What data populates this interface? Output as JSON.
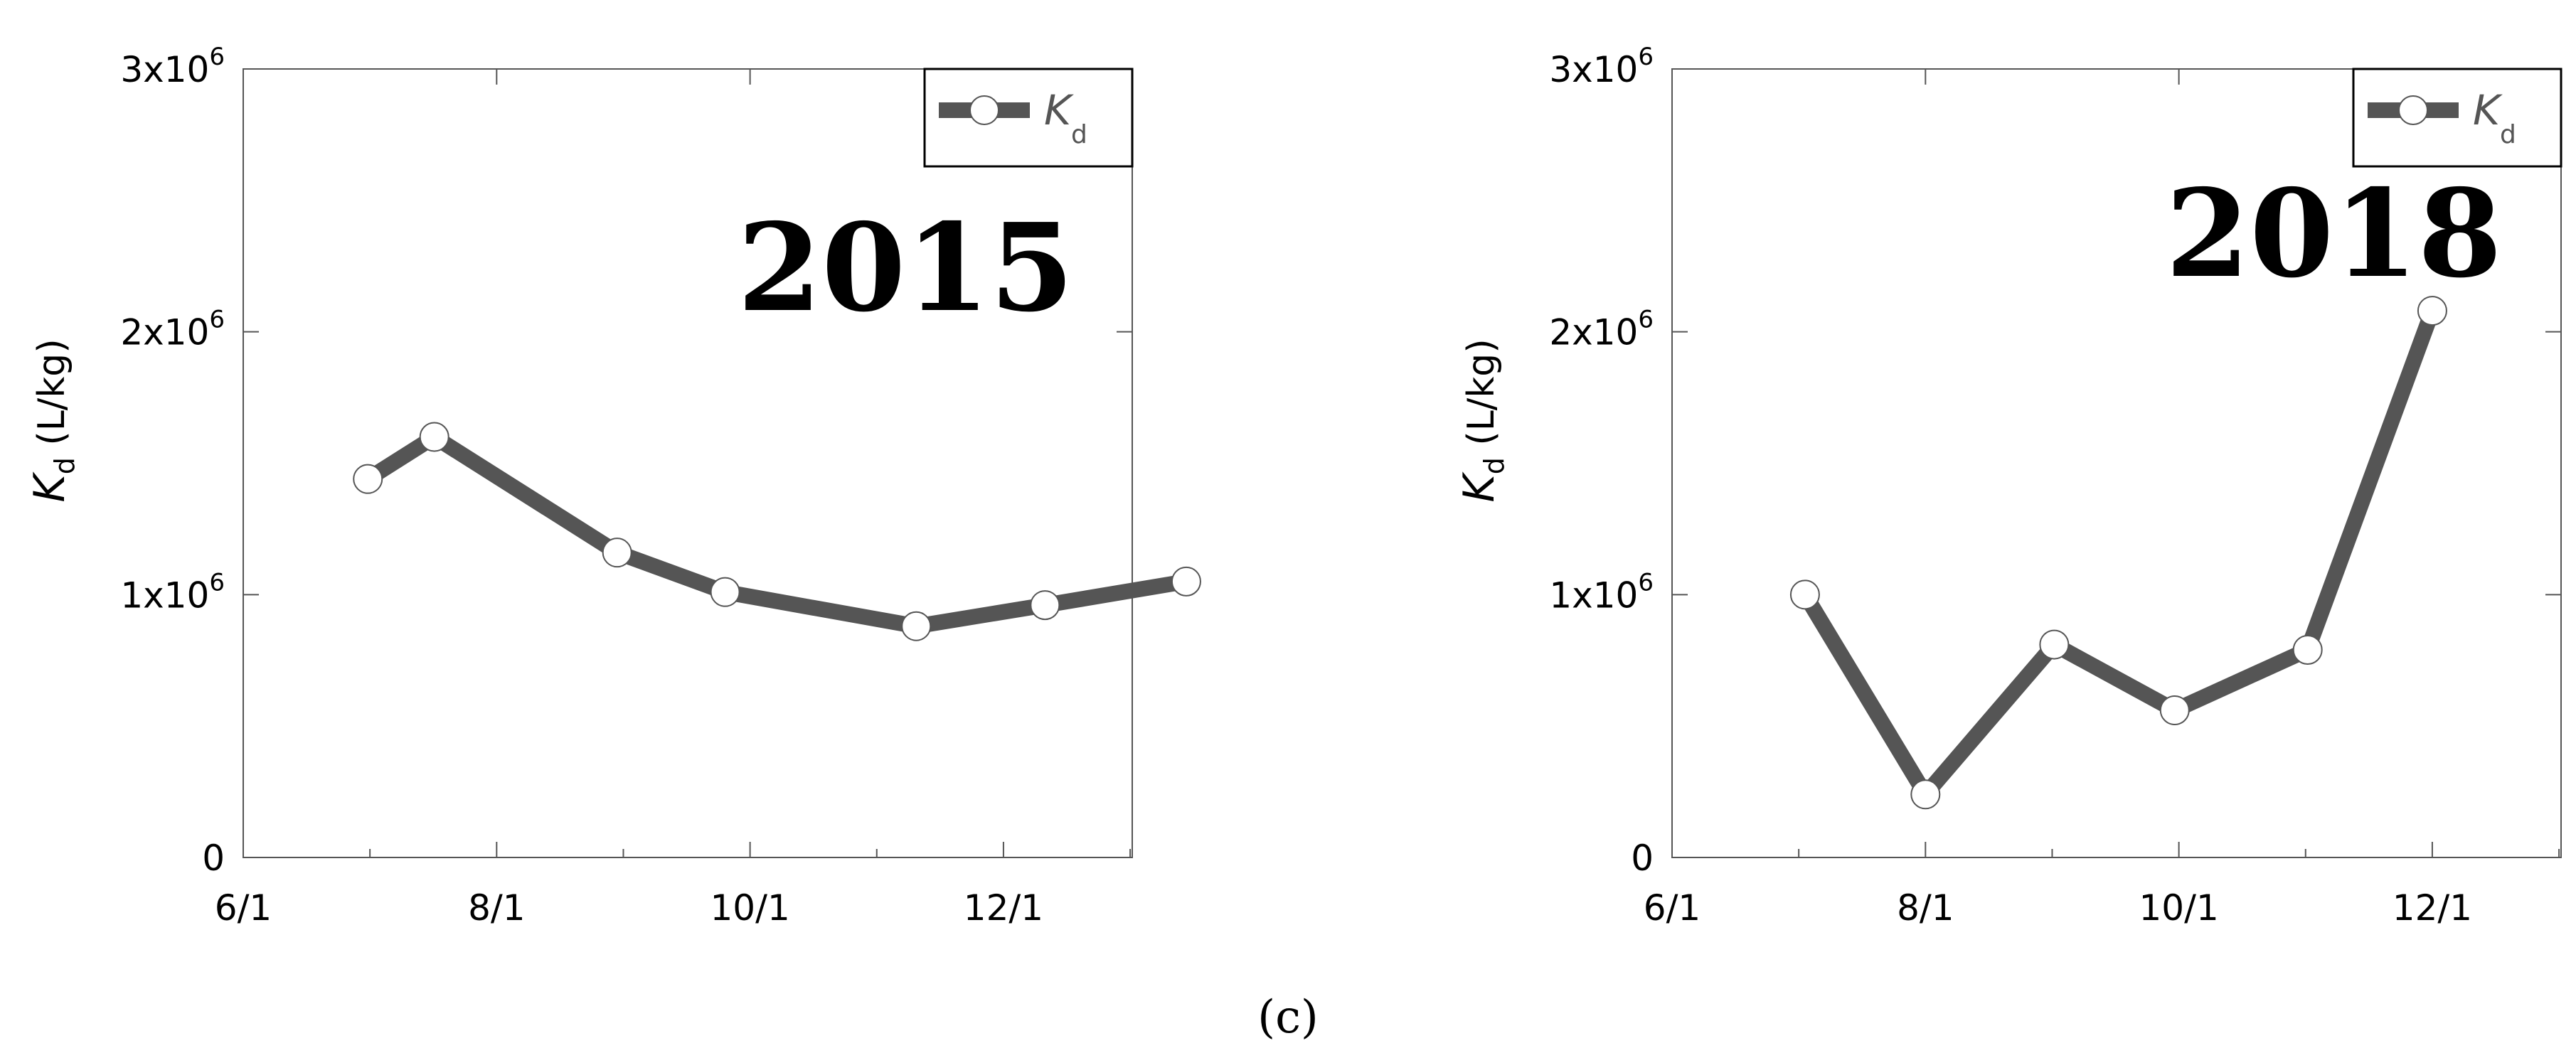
{
  "caption": "(c)",
  "chart_data": [
    {
      "type": "line",
      "annotation": "2015",
      "ylabel": {
        "symbol": "K",
        "subscript": "d",
        "unit": "(L/kg)"
      },
      "x_tick_labels": [
        "6/1",
        "8/1",
        "10/1",
        "12/1"
      ],
      "y_tick_labels": [
        {
          "value": 0,
          "text": "0"
        },
        {
          "value": 1000000,
          "text": "1x10",
          "exp": "6"
        },
        {
          "value": 2000000,
          "text": "2x10",
          "exp": "6"
        },
        {
          "value": 3000000,
          "text": "3x10",
          "exp": "6"
        }
      ],
      "xlim_days_after_jun1": [
        0,
        214
      ],
      "ylim": [
        0,
        3000000
      ],
      "legend": {
        "position": "top-right",
        "symbol": "K",
        "subscript": "d"
      },
      "series": [
        {
          "name": "Kd",
          "x": [
            "2015-07-01",
            "2015-07-17",
            "2015-08-30",
            "2015-09-25",
            "2015-11-10",
            "2015-12-11",
            "2016-01-15"
          ],
          "y": [
            1440000,
            1600000,
            1160000,
            1010000,
            880000,
            960000,
            1050000
          ]
        }
      ]
    },
    {
      "type": "line",
      "annotation": "2018",
      "ylabel": {
        "symbol": "K",
        "subscript": "d",
        "unit": "(L/kg)"
      },
      "x_tick_labels": [
        "6/1",
        "8/1",
        "10/1",
        "12/1"
      ],
      "y_tick_labels": [
        {
          "value": 0,
          "text": "0"
        },
        {
          "value": 1000000,
          "text": "1x10",
          "exp": "6"
        },
        {
          "value": 2000000,
          "text": "2x10",
          "exp": "6"
        },
        {
          "value": 3000000,
          "text": "3x10",
          "exp": "6"
        }
      ],
      "xlim_days_after_jun1": [
        0,
        214
      ],
      "ylim": [
        0,
        3000000
      ],
      "legend": {
        "position": "top-right",
        "symbol": "K",
        "subscript": "d"
      },
      "series": [
        {
          "name": "Kd",
          "x": [
            "2018-07-03",
            "2018-08-01",
            "2018-09-01",
            "2018-09-30",
            "2018-11-01",
            "2018-12-01"
          ],
          "y": [
            1000000,
            240000,
            810000,
            560000,
            790000,
            2080000
          ]
        }
      ]
    }
  ]
}
